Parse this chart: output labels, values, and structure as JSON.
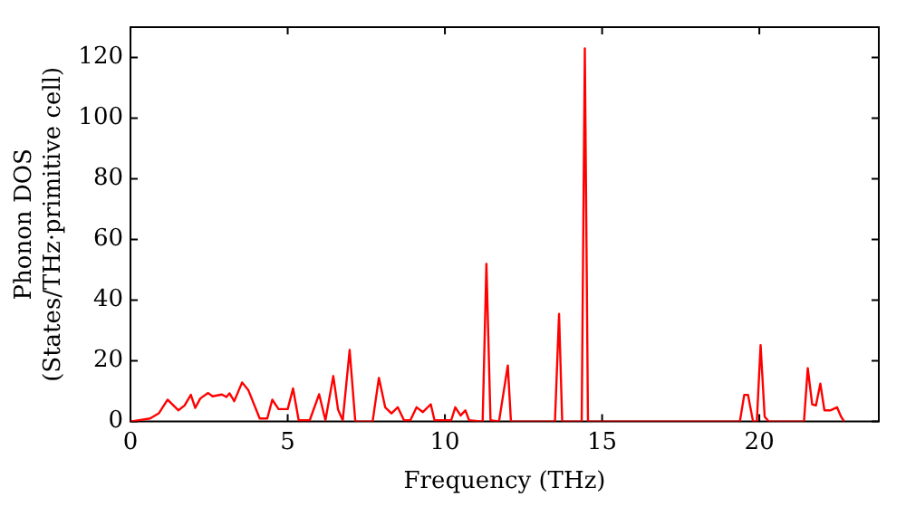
{
  "chart_data": {
    "type": "line",
    "xlabel": "Frequency (THz)",
    "ylabel": "Phonon DOS\n(States/THz·primitive cell)",
    "xlim": [
      0,
      23.8
    ],
    "ylim": [
      0,
      130
    ],
    "xticks": [
      0,
      5,
      10,
      15,
      20
    ],
    "yticks": [
      0,
      20,
      40,
      60,
      80,
      100,
      120
    ],
    "marker": "none",
    "line_style": "solid",
    "series": [
      {
        "color": "#ff0000",
        "x": [
          0,
          0.62,
          0.9,
          1.18,
          1.52,
          1.72,
          1.92,
          2.06,
          2.22,
          2.47,
          2.61,
          2.91,
          3.05,
          3.15,
          3.3,
          3.55,
          3.75,
          4.11,
          4.35,
          4.51,
          4.71,
          5.0,
          5.17,
          5.35,
          5.7,
          6.0,
          6.2,
          6.45,
          6.6,
          6.75,
          6.97,
          7.15,
          7.7,
          7.9,
          8.1,
          8.3,
          8.5,
          8.7,
          8.9,
          9.1,
          9.3,
          9.55,
          9.67,
          10.2,
          10.33,
          10.5,
          10.65,
          10.77,
          11.2,
          11.32,
          11.45,
          11.72,
          12.0,
          12.1,
          13.5,
          13.63,
          13.73,
          14.35,
          14.45,
          14.55,
          19.38,
          19.52,
          19.64,
          19.8,
          19.92,
          20.04,
          20.17,
          20.3,
          21.42,
          21.54,
          21.68,
          21.8,
          21.94,
          22.07,
          22.27,
          22.47,
          22.6,
          22.7
        ],
        "values": [
          0,
          1,
          2.7,
          7.2,
          3.7,
          5.3,
          8.8,
          4.5,
          7.6,
          9.4,
          8.3,
          8.9,
          8.1,
          9.3,
          6.7,
          12.9,
          10.3,
          1,
          1,
          7.2,
          4.1,
          4.1,
          10.9,
          0.4,
          0.4,
          9,
          0.4,
          15,
          4,
          0.4,
          23.6,
          0,
          0,
          14.4,
          4.7,
          2.7,
          4.7,
          0.4,
          0.4,
          4.7,
          3.1,
          5.7,
          0.4,
          0.4,
          4.7,
          2,
          3.7,
          0.4,
          0,
          52,
          0.4,
          0,
          18.5,
          0,
          0,
          35.5,
          0,
          0,
          123,
          0,
          0,
          8.8,
          8.8,
          0,
          0,
          25.2,
          1.6,
          0,
          0,
          17.6,
          5.7,
          5.3,
          12.5,
          3.7,
          3.7,
          4.7,
          1.6,
          0
        ]
      }
    ]
  }
}
